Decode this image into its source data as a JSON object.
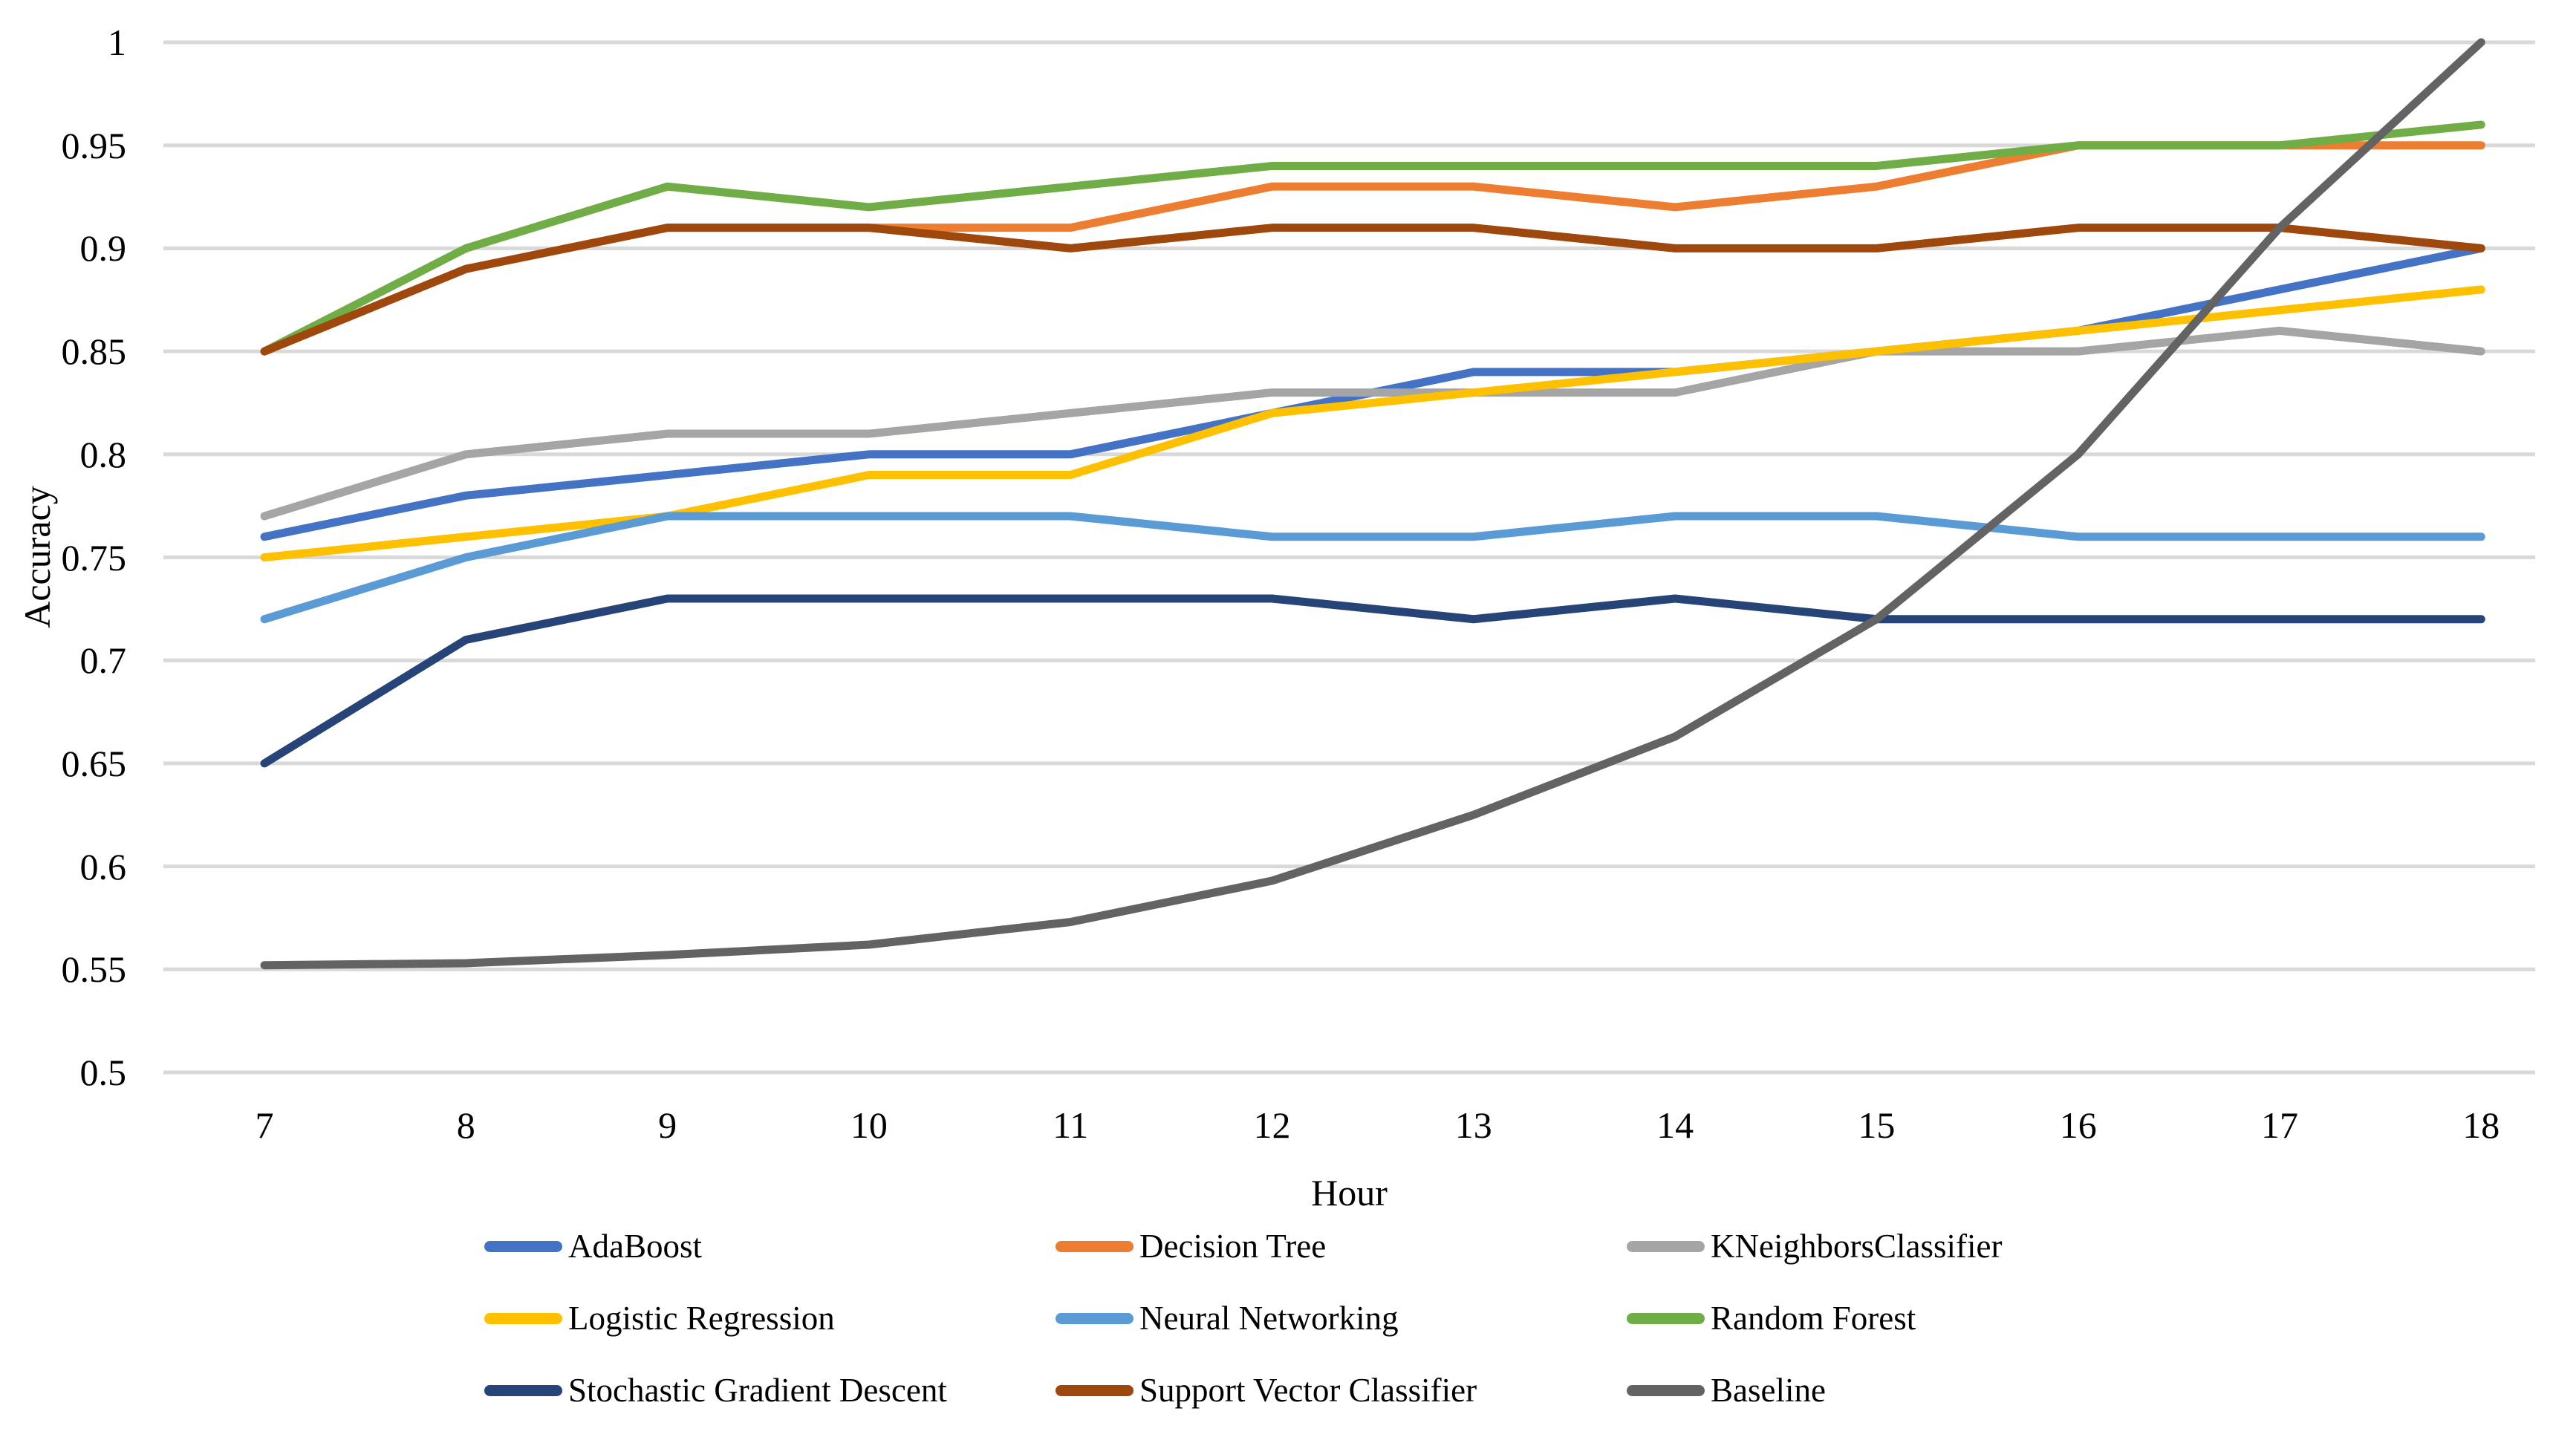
{
  "chart_data": {
    "type": "line",
    "title": "",
    "xlabel": "Hour",
    "ylabel": "Accuracy",
    "x": [
      7,
      8,
      9,
      10,
      11,
      12,
      13,
      14,
      15,
      16,
      17,
      18
    ],
    "x_tick_labels": [
      "7",
      "8",
      "9",
      "10",
      "11",
      "12",
      "13",
      "14",
      "15",
      "16",
      "17",
      "18"
    ],
    "ylim": [
      0.5,
      1.0
    ],
    "y_ticks": [
      1,
      0.95,
      0.9,
      0.85,
      0.8,
      0.75,
      0.7,
      0.65,
      0.6,
      0.55,
      0.5
    ],
    "y_tick_labels": [
      "1",
      "0.95",
      "0.9",
      "0.85",
      "0.8",
      "0.75",
      "0.7",
      "0.65",
      "0.6",
      "0.55",
      "0.5"
    ],
    "grid": true,
    "legend_position": "bottom",
    "legend_columns": 3,
    "series": [
      {
        "name": "AdaBoost",
        "color": "#4472C4",
        "values": [
          0.76,
          0.78,
          0.79,
          0.8,
          0.8,
          0.82,
          0.84,
          0.84,
          0.85,
          0.86,
          0.88,
          0.9
        ]
      },
      {
        "name": "Decision Tree",
        "color": "#ED7D31",
        "values": [
          0.85,
          0.89,
          0.91,
          0.91,
          0.91,
          0.93,
          0.93,
          0.92,
          0.93,
          0.95,
          0.95,
          0.95
        ]
      },
      {
        "name": "KNeighborsClassifier",
        "color": "#A5A5A5",
        "values": [
          0.77,
          0.8,
          0.81,
          0.81,
          0.82,
          0.83,
          0.83,
          0.83,
          0.85,
          0.85,
          0.86,
          0.85
        ]
      },
      {
        "name": "Logistic Regression",
        "color": "#FFC000",
        "values": [
          0.75,
          0.76,
          0.77,
          0.79,
          0.79,
          0.82,
          0.83,
          0.84,
          0.85,
          0.86,
          0.87,
          0.88
        ]
      },
      {
        "name": "Neural Networking",
        "color": "#5B9BD5",
        "values": [
          0.72,
          0.75,
          0.77,
          0.77,
          0.77,
          0.76,
          0.76,
          0.77,
          0.77,
          0.76,
          0.76,
          0.76
        ]
      },
      {
        "name": "Random Forest",
        "color": "#70AD47",
        "values": [
          0.85,
          0.9,
          0.93,
          0.92,
          0.93,
          0.94,
          0.94,
          0.94,
          0.94,
          0.95,
          0.95,
          0.96
        ]
      },
      {
        "name": "Stochastic Gradient Descent",
        "color": "#264478",
        "values": [
          0.65,
          0.71,
          0.73,
          0.73,
          0.73,
          0.73,
          0.72,
          0.73,
          0.72,
          0.72,
          0.72,
          0.72
        ]
      },
      {
        "name": "Support Vector Classifier",
        "color": "#9E480E",
        "values": [
          0.85,
          0.89,
          0.91,
          0.91,
          0.9,
          0.91,
          0.91,
          0.9,
          0.9,
          0.91,
          0.91,
          0.9
        ]
      },
      {
        "name": "Baseline",
        "color": "#636363",
        "values": [
          0.552,
          0.553,
          0.557,
          0.562,
          0.573,
          0.593,
          0.625,
          0.663,
          0.72,
          0.8,
          0.91,
          1.0
        ]
      }
    ]
  },
  "colors": {
    "gridline": "#D9D9D9",
    "background": "#FFFFFF",
    "text": "#000000"
  }
}
